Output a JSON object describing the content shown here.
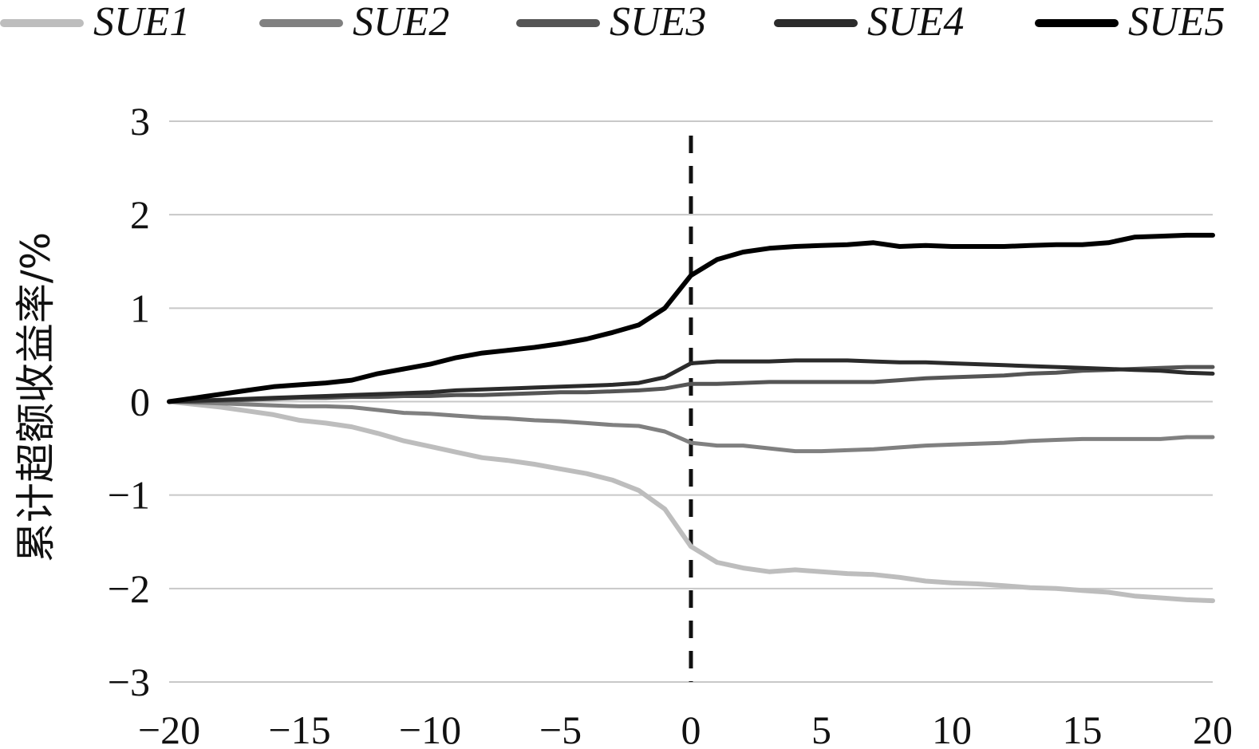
{
  "chart_data": {
    "type": "line",
    "title": "",
    "xlabel": "",
    "ylabel": "累计超额收益率/%",
    "xlim": [
      -20,
      20
    ],
    "ylim": [
      -3,
      3
    ],
    "x_ticks": [
      -20,
      -15,
      -10,
      -5,
      0,
      5,
      10,
      15,
      20
    ],
    "y_ticks": [
      3,
      2,
      1,
      0,
      -1,
      -2,
      -3
    ],
    "x_tick_labels": [
      "−20",
      "−15",
      "−10",
      "−5",
      "0",
      "5",
      "10",
      "15",
      "20"
    ],
    "y_tick_labels": [
      "3",
      "2",
      "1",
      "0",
      "−1",
      "−2",
      "−3"
    ],
    "grid": "horizontal",
    "legend_position": "top",
    "event_marker_x": 0,
    "colors": {
      "SUE1": "#bdbdbd",
      "SUE2": "#808080",
      "SUE3": "#555555",
      "SUE4": "#2b2b2b",
      "SUE5": "#000000",
      "grid": "#c8c8c8"
    },
    "x": [
      -20,
      -19,
      -18,
      -17,
      -16,
      -15,
      -14,
      -13,
      -12,
      -11,
      -10,
      -9,
      -8,
      -7,
      -6,
      -5,
      -4,
      -3,
      -2,
      -1,
      0,
      1,
      2,
      3,
      4,
      5,
      6,
      7,
      8,
      9,
      10,
      11,
      12,
      13,
      14,
      15,
      16,
      17,
      18,
      19,
      20
    ],
    "series": [
      {
        "name": "SUE1",
        "values": [
          0,
          -0.03,
          -0.06,
          -0.1,
          -0.14,
          -0.2,
          -0.23,
          -0.27,
          -0.34,
          -0.42,
          -0.48,
          -0.54,
          -0.6,
          -0.63,
          -0.67,
          -0.72,
          -0.77,
          -0.84,
          -0.95,
          -1.15,
          -1.55,
          -1.72,
          -1.78,
          -1.82,
          -1.8,
          -1.82,
          -1.84,
          -1.85,
          -1.88,
          -1.92,
          -1.94,
          -1.95,
          -1.97,
          -1.99,
          -2.0,
          -2.02,
          -2.04,
          -2.08,
          -2.1,
          -2.12,
          -2.13
        ]
      },
      {
        "name": "SUE2",
        "values": [
          0,
          -0.01,
          -0.02,
          -0.03,
          -0.04,
          -0.05,
          -0.05,
          -0.06,
          -0.09,
          -0.12,
          -0.13,
          -0.15,
          -0.17,
          -0.18,
          -0.2,
          -0.21,
          -0.23,
          -0.25,
          -0.26,
          -0.32,
          -0.44,
          -0.47,
          -0.47,
          -0.5,
          -0.53,
          -0.53,
          -0.52,
          -0.51,
          -0.49,
          -0.47,
          -0.46,
          -0.45,
          -0.44,
          -0.42,
          -0.41,
          -0.4,
          -0.4,
          -0.4,
          -0.4,
          -0.38,
          -0.38
        ]
      },
      {
        "name": "SUE3",
        "values": [
          0,
          0,
          0.01,
          0.02,
          0.03,
          0.04,
          0.04,
          0.05,
          0.05,
          0.06,
          0.06,
          0.07,
          0.07,
          0.08,
          0.09,
          0.1,
          0.1,
          0.11,
          0.12,
          0.14,
          0.19,
          0.19,
          0.2,
          0.21,
          0.21,
          0.21,
          0.21,
          0.21,
          0.23,
          0.25,
          0.26,
          0.27,
          0.28,
          0.3,
          0.31,
          0.33,
          0.34,
          0.35,
          0.36,
          0.37,
          0.37
        ]
      },
      {
        "name": "SUE4",
        "values": [
          0,
          0.01,
          0.02,
          0.03,
          0.04,
          0.05,
          0.06,
          0.07,
          0.08,
          0.09,
          0.1,
          0.12,
          0.13,
          0.14,
          0.15,
          0.16,
          0.17,
          0.18,
          0.2,
          0.26,
          0.41,
          0.43,
          0.43,
          0.43,
          0.44,
          0.44,
          0.44,
          0.43,
          0.42,
          0.42,
          0.41,
          0.4,
          0.39,
          0.38,
          0.37,
          0.36,
          0.35,
          0.34,
          0.33,
          0.31,
          0.3
        ]
      },
      {
        "name": "SUE5",
        "values": [
          0,
          0.04,
          0.08,
          0.12,
          0.16,
          0.18,
          0.2,
          0.23,
          0.3,
          0.35,
          0.4,
          0.47,
          0.52,
          0.55,
          0.58,
          0.62,
          0.67,
          0.74,
          0.82,
          1.0,
          1.35,
          1.52,
          1.6,
          1.64,
          1.66,
          1.67,
          1.68,
          1.7,
          1.66,
          1.67,
          1.66,
          1.66,
          1.66,
          1.67,
          1.68,
          1.68,
          1.7,
          1.76,
          1.77,
          1.78,
          1.78
        ]
      }
    ]
  }
}
